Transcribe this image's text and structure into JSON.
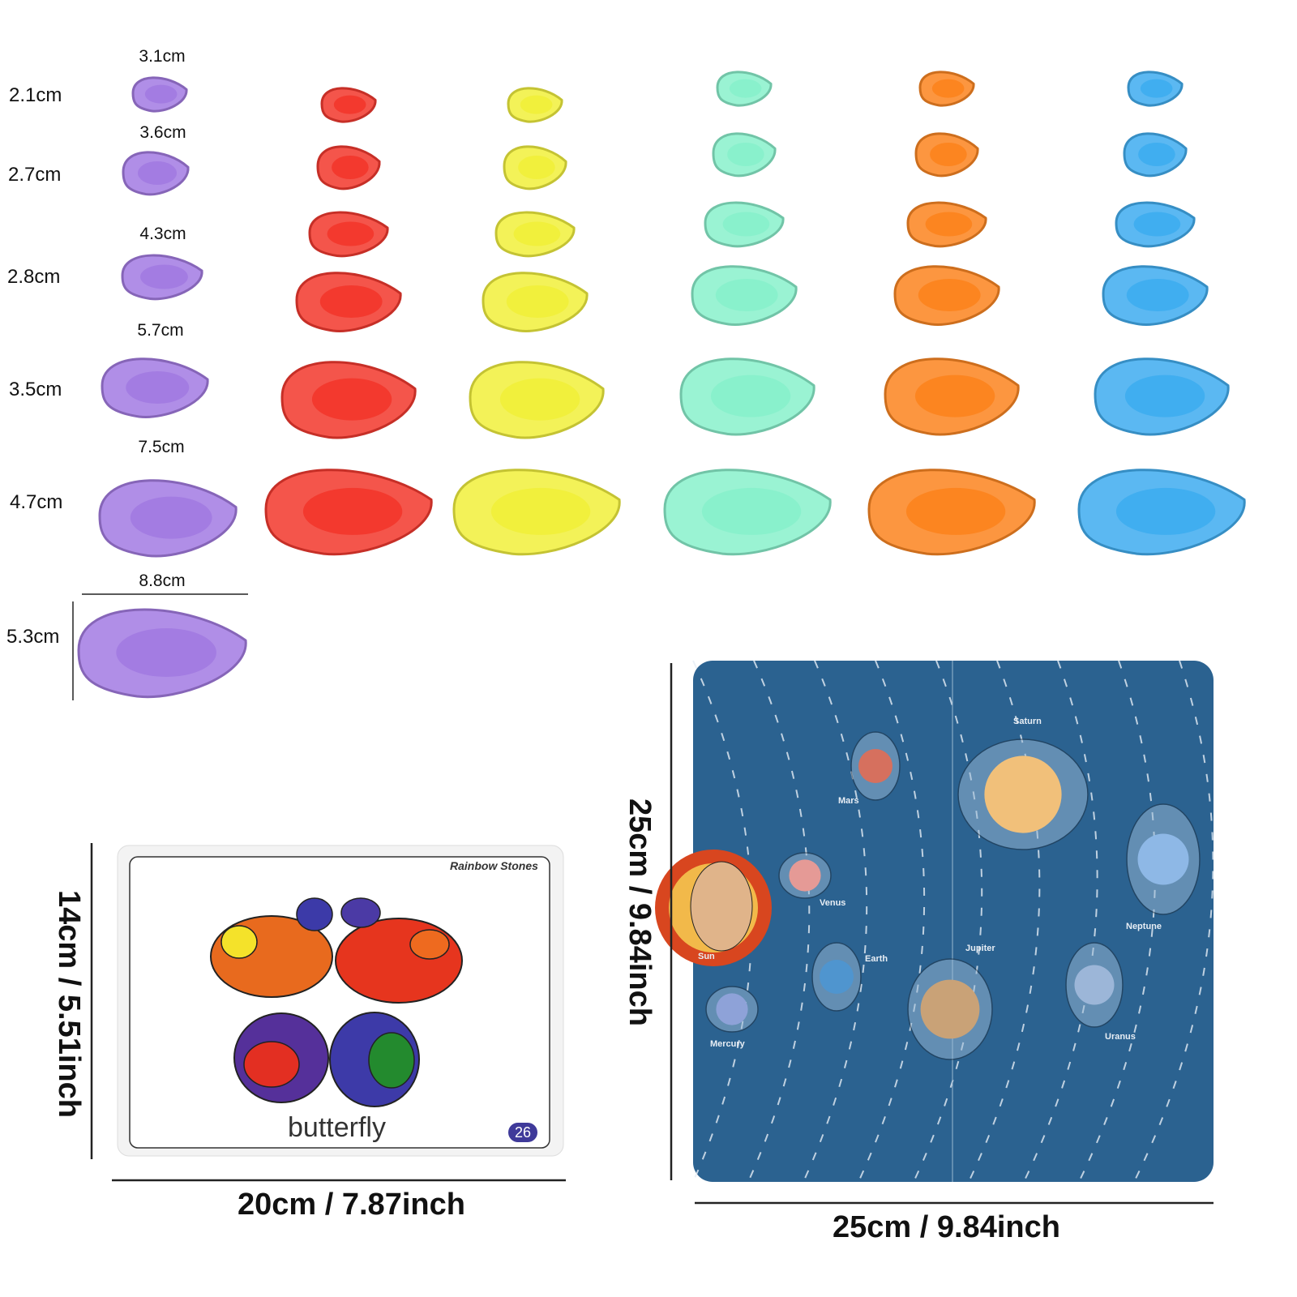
{
  "stone_sizes": {
    "widths": [
      "3.1cm",
      "3.6cm",
      "4.3cm",
      "5.7cm",
      "7.5cm",
      "8.8cm"
    ],
    "heights": [
      "2.1cm",
      "2.7cm",
      "2.8cm",
      "3.5cm",
      "4.7cm",
      "5.3cm"
    ]
  },
  "stone_colors": {
    "purple": "#9b6fe0",
    "red": "#f2261a",
    "yellow": "#f0ee2a",
    "green": "#7ff0c8",
    "orange": "#fb7a0c",
    "blue": "#2fa6ef"
  },
  "card": {
    "brand": "Rainbow Stones",
    "word": "butterfly",
    "number": "26",
    "height_label": "14cm / 5.51inch",
    "width_label": "20cm / 7.87inch"
  },
  "board": {
    "planets": [
      "Sun",
      "Mercury",
      "Venus",
      "Earth",
      "Mars",
      "Jupiter",
      "Saturn",
      "Uranus",
      "Neptune"
    ],
    "background": "#2b6290",
    "height_label": "25cm / 9.84inch",
    "width_label": "25cm / 9.84inch"
  }
}
